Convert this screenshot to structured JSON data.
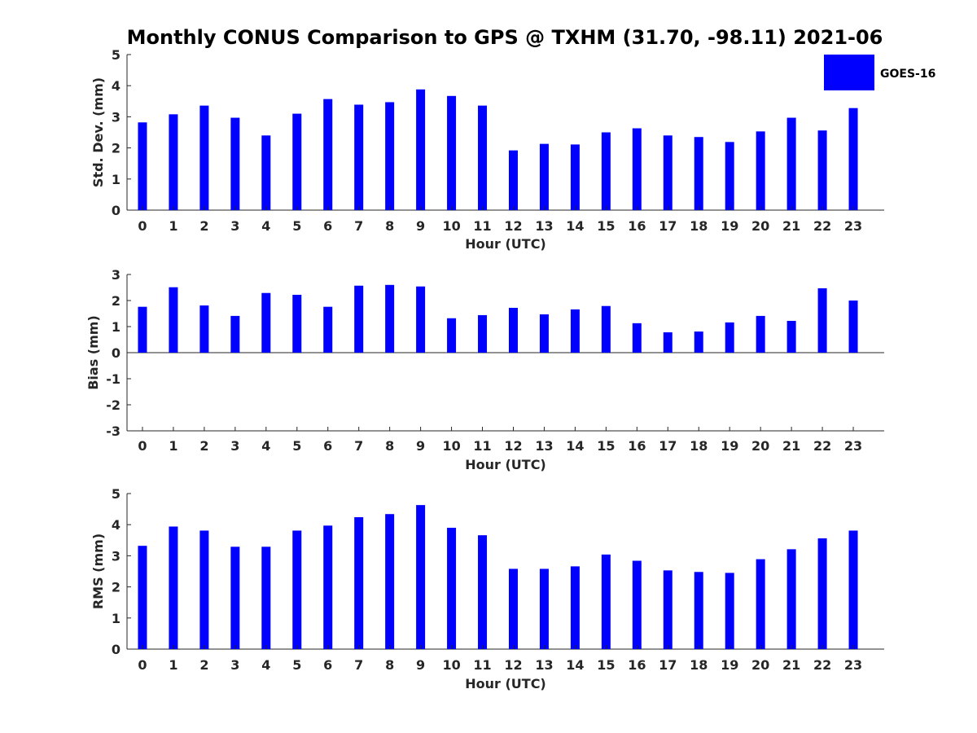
{
  "title": "Monthly CONUS Comparison to GPS @ TXHM (31.70, -98.11) 2021-06",
  "legend": {
    "label": "GOES-16",
    "color": "#0000ff"
  },
  "chart_data": [
    {
      "type": "bar",
      "name": "std-dev",
      "xlabel": "Hour (UTC)",
      "ylabel": "Std. Dev. (mm)",
      "ylim": [
        0,
        5
      ],
      "yticks": [
        "0",
        "1",
        "2",
        "3",
        "4",
        "5"
      ],
      "categories": [
        "0",
        "1",
        "2",
        "3",
        "4",
        "5",
        "6",
        "7",
        "8",
        "9",
        "10",
        "11",
        "12",
        "13",
        "14",
        "15",
        "16",
        "17",
        "18",
        "19",
        "20",
        "21",
        "22",
        "23"
      ],
      "series": [
        {
          "color": "#0000ff",
          "values": [
            2.82,
            3.08,
            3.36,
            2.97,
            2.4,
            3.1,
            3.57,
            3.39,
            3.47,
            3.88,
            3.67,
            3.36,
            1.92,
            2.13,
            2.11,
            2.5,
            2.63,
            2.4,
            2.35,
            2.19,
            2.53,
            2.97,
            2.56,
            3.28
          ]
        }
      ]
    },
    {
      "type": "bar",
      "name": "bias",
      "xlabel": "Hour (UTC)",
      "ylabel": "Bias (mm)",
      "ylim": [
        -3,
        3
      ],
      "yticks": [
        "-3",
        "-2",
        "-1",
        "0",
        "1",
        "2",
        "3"
      ],
      "zero_line": true,
      "categories": [
        "0",
        "1",
        "2",
        "3",
        "4",
        "5",
        "6",
        "7",
        "8",
        "9",
        "10",
        "11",
        "12",
        "13",
        "14",
        "15",
        "16",
        "17",
        "18",
        "19",
        "20",
        "21",
        "22",
        "23"
      ],
      "series": [
        {
          "color": "#0000ff",
          "values": [
            1.76,
            2.51,
            1.81,
            1.41,
            2.29,
            2.22,
            1.76,
            2.57,
            2.6,
            2.54,
            1.32,
            1.44,
            1.72,
            1.47,
            1.66,
            1.79,
            1.13,
            0.78,
            0.81,
            1.16,
            1.41,
            1.22,
            2.47,
            2.0
          ]
        }
      ]
    },
    {
      "type": "bar",
      "name": "rms",
      "xlabel": "Hour (UTC)",
      "ylabel": "RMS (mm)",
      "ylim": [
        0,
        5
      ],
      "yticks": [
        "0",
        "1",
        "2",
        "3",
        "4",
        "5"
      ],
      "categories": [
        "0",
        "1",
        "2",
        "3",
        "4",
        "5",
        "6",
        "7",
        "8",
        "9",
        "10",
        "11",
        "12",
        "13",
        "14",
        "15",
        "16",
        "17",
        "18",
        "19",
        "20",
        "21",
        "22",
        "23"
      ],
      "series": [
        {
          "color": "#0000ff",
          "values": [
            3.32,
            3.94,
            3.81,
            3.29,
            3.29,
            3.81,
            3.97,
            4.24,
            4.34,
            4.63,
            3.9,
            3.66,
            2.58,
            2.58,
            2.66,
            3.04,
            2.84,
            2.53,
            2.48,
            2.45,
            2.89,
            3.21,
            3.56,
            3.81
          ]
        }
      ]
    }
  ]
}
